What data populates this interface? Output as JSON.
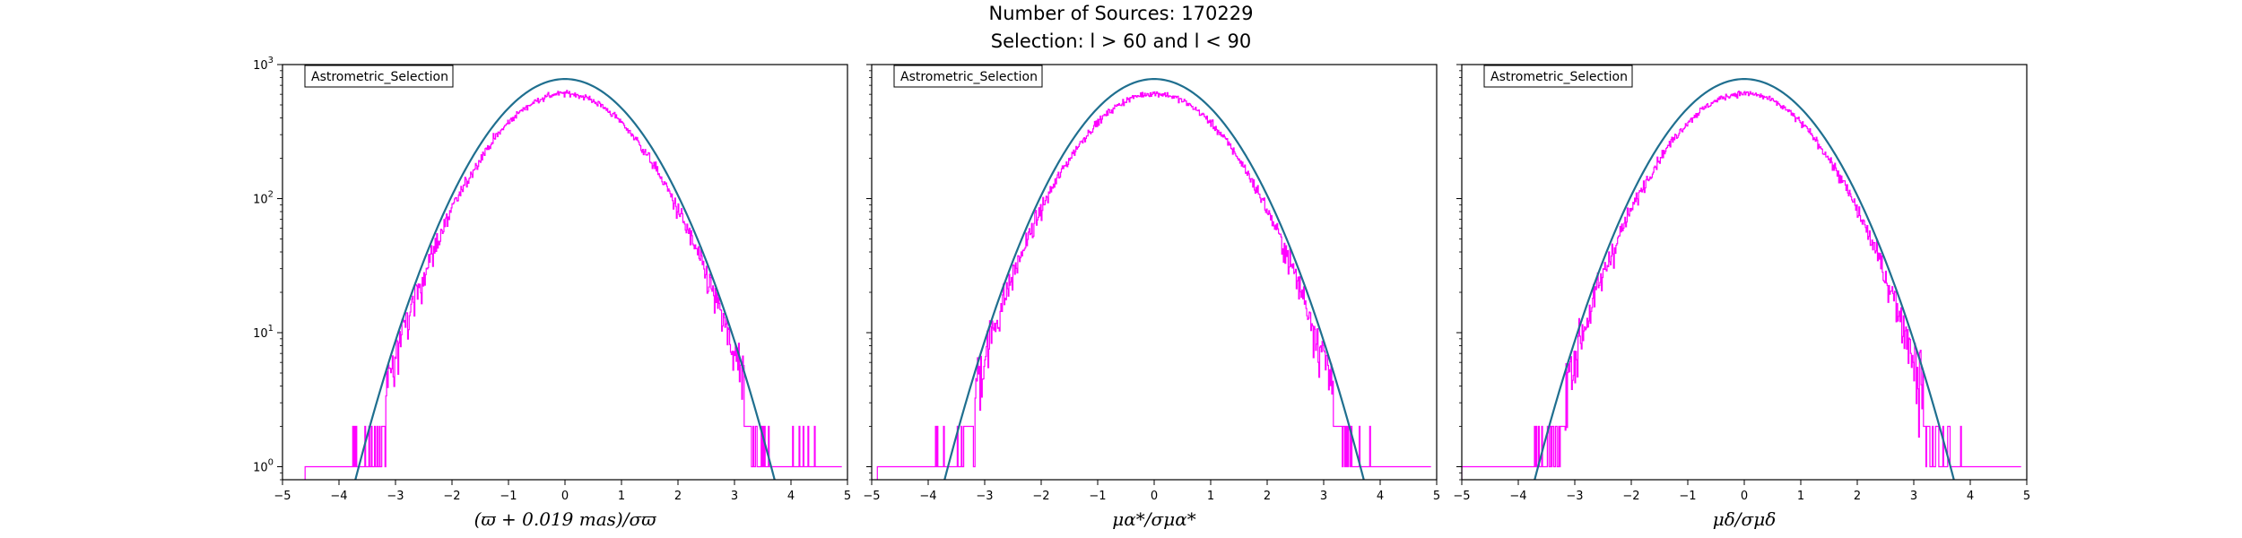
{
  "figure": {
    "title_line1": "Number of Sources: 170229",
    "title_line2": "Selection: l > 60 and l < 90"
  },
  "colors": {
    "histogram": "#ff00ff",
    "model": "#1f6f8f",
    "axes": "#000000"
  },
  "chart_data": [
    {
      "type": "line",
      "panel": "left",
      "legend": "Astrometric_Selection",
      "legend_position": "top-left",
      "xlabel": "(ϖ + 0.019 mas)/σϖ",
      "xlim": [
        -5,
        5
      ],
      "ylim": [
        0.8,
        1000
      ],
      "yscale": "log",
      "xticks": [
        "−5",
        "−4",
        "−3",
        "−2",
        "−1",
        "0",
        "1",
        "2",
        "3",
        "4",
        "5"
      ],
      "yticks": [
        {
          "base": "10",
          "exp": "0"
        },
        {
          "base": "10",
          "exp": "1"
        },
        {
          "base": "10",
          "exp": "2"
        },
        {
          "base": "10",
          "exp": "3"
        }
      ],
      "series": [
        {
          "kind": "histogram",
          "x_range": [
            -4.6,
            4.9
          ],
          "tails_floor": 1
        },
        {
          "kind": "model",
          "peak": 780,
          "center": 0,
          "sigma": 1
        }
      ]
    },
    {
      "type": "line",
      "panel": "middle",
      "legend": "Astrometric_Selection",
      "legend_position": "top-left",
      "xlabel": "μα*/σμα*",
      "xlim": [
        -5,
        5
      ],
      "ylim": [
        0.8,
        1000
      ],
      "yscale": "log",
      "xticks": [
        "−5",
        "−4",
        "−3",
        "−2",
        "−1",
        "0",
        "1",
        "2",
        "3",
        "4",
        "5"
      ],
      "yticks": [
        {
          "base": "10",
          "exp": "0"
        },
        {
          "base": "10",
          "exp": "1"
        },
        {
          "base": "10",
          "exp": "2"
        },
        {
          "base": "10",
          "exp": "3"
        }
      ],
      "series": [
        {
          "kind": "histogram",
          "x_range": [
            -4.9,
            4.9
          ],
          "tails_floor": 1
        },
        {
          "kind": "model",
          "peak": 780,
          "center": 0,
          "sigma": 1
        }
      ]
    },
    {
      "type": "line",
      "panel": "right",
      "legend": "Astrometric_Selection",
      "legend_position": "top-left",
      "xlabel": "μδ/σμδ",
      "xlim": [
        -5,
        5
      ],
      "ylim": [
        0.8,
        1000
      ],
      "yscale": "log",
      "xticks": [
        "−5",
        "−4",
        "−3",
        "−2",
        "−1",
        "0",
        "1",
        "2",
        "3",
        "4",
        "5"
      ],
      "yticks": [
        {
          "base": "10",
          "exp": "0"
        },
        {
          "base": "10",
          "exp": "1"
        },
        {
          "base": "10",
          "exp": "2"
        },
        {
          "base": "10",
          "exp": "3"
        }
      ],
      "series": [
        {
          "kind": "histogram",
          "x_range": [
            -5.0,
            4.9
          ],
          "tails_floor": 1
        },
        {
          "kind": "model",
          "peak": 780,
          "center": 0,
          "sigma": 1
        }
      ]
    }
  ]
}
